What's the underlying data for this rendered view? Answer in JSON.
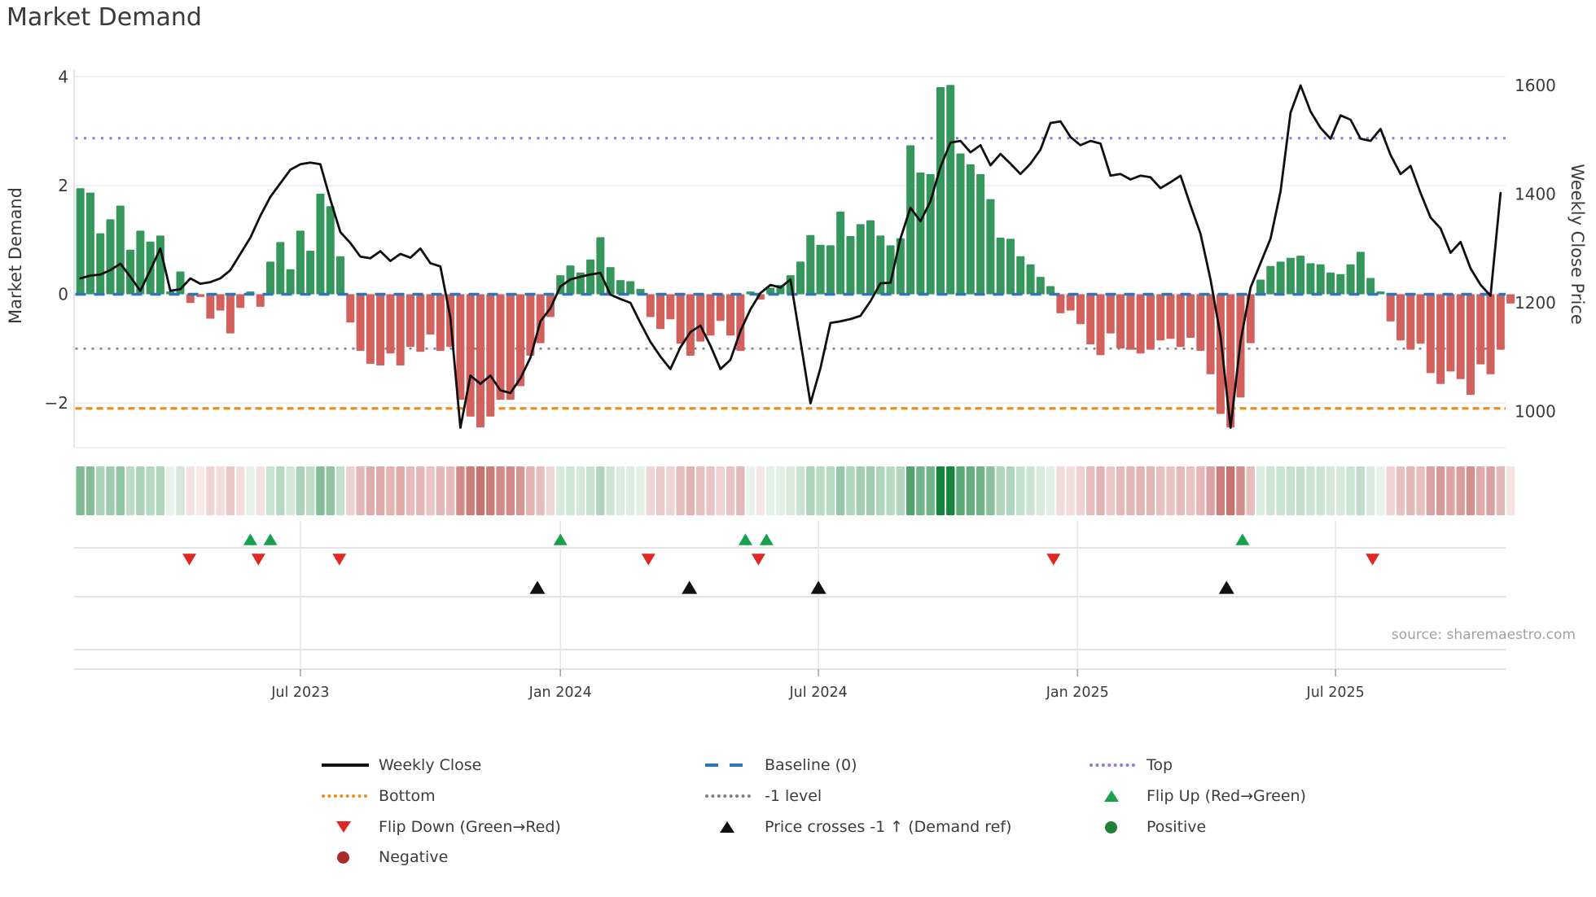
{
  "page": {
    "title": "Market Demand",
    "source": "source: sharemaestro.com"
  },
  "axes": {
    "left": {
      "title": "Market Demand",
      "ticks": [
        {
          "v": 4,
          "label": "4"
        },
        {
          "v": 2,
          "label": "2"
        },
        {
          "v": 0,
          "label": "0"
        },
        {
          "v": -2,
          "label": "−2"
        }
      ]
    },
    "right": {
      "title": "Weekly Close Price",
      "ticks": [
        {
          "p": 1600,
          "label": "1600"
        },
        {
          "p": 1400,
          "label": "1400"
        },
        {
          "p": 1200,
          "label": "1200"
        },
        {
          "p": 1000,
          "label": "1000"
        }
      ]
    },
    "x": {
      "ticks": [
        {
          "week": 22.0,
          "label": "Jul 2023"
        },
        {
          "week": 48.0,
          "label": "Jan 2024"
        },
        {
          "week": 73.8,
          "label": "Jul 2024"
        },
        {
          "week": 99.7,
          "label": "Jan 2025"
        },
        {
          "week": 125.5,
          "label": "Jul 2025"
        }
      ]
    }
  },
  "chart_data": {
    "type": "bar+line",
    "title": "Market Demand",
    "x_unit": "weeks (Feb 2023 - Oct 2025)",
    "ylim_left": [
      -2.8,
      4.1
    ],
    "ylim_right": [
      960,
      1630
    ],
    "grid": "horizontal",
    "series": [
      {
        "name": "Market Demand",
        "type": "bar",
        "axis": "left",
        "values": [
          1.95,
          1.87,
          1.12,
          1.38,
          1.63,
          0.82,
          1.17,
          0.97,
          1.08,
          0.05,
          0.42,
          -0.16,
          -0.05,
          -0.45,
          -0.3,
          -0.72,
          -0.25,
          0.05,
          -0.23,
          0.6,
          0.96,
          0.46,
          1.17,
          0.8,
          1.85,
          1.62,
          0.7,
          -0.52,
          -1.04,
          -1.28,
          -1.31,
          -1.09,
          -1.31,
          -0.97,
          -1.06,
          -0.74,
          -1.04,
          -0.97,
          -1.94,
          -2.25,
          -2.45,
          -2.25,
          -1.94,
          -1.94,
          -1.69,
          -1.13,
          -0.9,
          -0.42,
          0.35,
          0.53,
          0.4,
          0.64,
          1.05,
          0.5,
          0.26,
          0.24,
          0.1,
          -0.42,
          -0.64,
          -0.46,
          -0.91,
          -1.13,
          -0.87,
          -0.76,
          -0.49,
          -0.76,
          -1.04,
          0.05,
          -0.1,
          0.12,
          0.17,
          0.35,
          0.6,
          1.09,
          0.91,
          0.9,
          1.52,
          1.07,
          1.29,
          1.36,
          1.08,
          0.9,
          1.03,
          2.74,
          2.24,
          2.21,
          3.81,
          3.85,
          2.59,
          2.39,
          2.21,
          1.75,
          1.04,
          1.02,
          0.7,
          0.55,
          0.32,
          0.15,
          -0.35,
          -0.3,
          -0.55,
          -0.92,
          -1.12,
          -0.72,
          -1.0,
          -1.02,
          -1.09,
          -1.02,
          -0.85,
          -0.82,
          -0.97,
          -0.8,
          -1.04,
          -1.47,
          -2.2,
          -2.45,
          -1.9,
          -0.9,
          0.27,
          0.52,
          0.6,
          0.67,
          0.71,
          0.57,
          0.55,
          0.4,
          0.37,
          0.55,
          0.78,
          0.3,
          0.05,
          -0.5,
          -0.85,
          -1.02,
          -0.91,
          -1.45,
          -1.65,
          -1.42,
          -1.56,
          -1.85,
          -1.29,
          -1.47,
          -1.02,
          -0.17
        ]
      },
      {
        "name": "Weekly Close",
        "type": "line",
        "axis": "right",
        "values": [
          1245,
          1250,
          1252,
          1260,
          1272,
          1248,
          1222,
          1260,
          1300,
          1222,
          1225,
          1245,
          1235,
          1238,
          1245,
          1260,
          1290,
          1320,
          1360,
          1395,
          1420,
          1445,
          1455,
          1458,
          1455,
          1390,
          1330,
          1310,
          1285,
          1282,
          1295,
          1277,
          1290,
          1283,
          1300,
          1273,
          1267,
          1173,
          970,
          1066,
          1051,
          1066,
          1039,
          1034,
          1061,
          1099,
          1166,
          1190,
          1230,
          1243,
          1248,
          1252,
          1255,
          1215,
          1207,
          1200,
          1163,
          1128,
          1101,
          1078,
          1118,
          1146,
          1158,
          1121,
          1078,
          1095,
          1148,
          1188,
          1218,
          1233,
          1228,
          1243,
          1130,
          1015,
          1080,
          1163,
          1166,
          1170,
          1176,
          1203,
          1236,
          1237,
          1318,
          1375,
          1350,
          1387,
          1450,
          1495,
          1498,
          1477,
          1490,
          1453,
          1474,
          1456,
          1437,
          1456,
          1482,
          1531,
          1534,
          1505,
          1490,
          1498,
          1493,
          1434,
          1437,
          1427,
          1434,
          1431,
          1411,
          1422,
          1434,
          1379,
          1327,
          1243,
          1139,
          970,
          1129,
          1228,
          1273,
          1318,
          1405,
          1550,
          1600,
          1552,
          1522,
          1502,
          1545,
          1537,
          1502,
          1498,
          1520,
          1472,
          1437,
          1452,
          1402,
          1357,
          1337,
          1292,
          1312,
          1263,
          1233,
          1213,
          1402
        ]
      }
    ],
    "ref_lines": [
      {
        "name": "top",
        "label": "Top",
        "axis": "left",
        "value": 2.87,
        "color": "#8b7edd",
        "style": "dotted"
      },
      {
        "name": "baseline",
        "label": "Baseline (0)",
        "axis": "left",
        "value": 0,
        "color": "#2e76b5",
        "style": "dashed"
      },
      {
        "name": "minus_one",
        "label": "-1 level",
        "axis": "left",
        "value": -1,
        "color": "#83838a",
        "style": "dotted"
      },
      {
        "name": "bottom",
        "label": "Bottom",
        "axis": "left",
        "value": -2.1,
        "color": "#ee8e1f",
        "style": "dotted"
      }
    ],
    "markers": {
      "flip_up": {
        "label": "Flip Up (Red→Green)",
        "color": "#18a14a",
        "weeks": [
          17.0,
          19.0,
          48.0,
          66.5,
          68.6,
          116.2
        ]
      },
      "flip_down": {
        "label": "Flip Down (Green→Red)",
        "color": "#e02724",
        "weeks": [
          10.9,
          17.8,
          25.9,
          56.8,
          67.8,
          97.3,
          129.2
        ]
      },
      "price_cross": {
        "label": "Price crosses -1 ↑ (Demand ref)",
        "color": "#111111",
        "weeks": [
          45.7,
          60.9,
          73.8,
          114.6
        ]
      }
    },
    "colors": {
      "bar_positive": "#35975c",
      "bar_negative": "#d2615e",
      "price_line": "#101010",
      "heat_pos_low": "#eaf4ec",
      "heat_pos_high": "#168442",
      "heat_neg_low": "#f8ebeb",
      "heat_neg_high": "#c6726e"
    },
    "heatmap": {
      "description": "weekly demand strip, green positive / red negative, intensity by magnitude"
    }
  },
  "legend": {
    "columns": [
      {
        "items": [
          {
            "swatch": "line-black",
            "label": "Weekly Close"
          },
          {
            "swatch": "dotted-orange",
            "label": "Bottom"
          },
          {
            "swatch": "tri-down-red",
            "label": "Flip Down (Green→Red)"
          },
          {
            "swatch": "circle-darkred",
            "label": "Negative"
          }
        ]
      },
      {
        "items": [
          {
            "swatch": "dash-blue",
            "label": "Baseline (0)"
          },
          {
            "swatch": "dotted-gray",
            "label": "-1 level"
          },
          {
            "swatch": "tri-up-black",
            "label": "Price crosses -1 ↑ (Demand ref)"
          }
        ]
      },
      {
        "items": [
          {
            "swatch": "dotted-purple",
            "label": "Top"
          },
          {
            "swatch": "tri-up-green",
            "label": "Flip Up (Red→Green)"
          },
          {
            "swatch": "circle-green",
            "label": "Positive"
          }
        ]
      }
    ],
    "swatch_colors": {
      "line-black": "#111111",
      "dotted-orange": "#ee8e1f",
      "tri-down-red": "#e02724",
      "circle-darkred": "#a92a2a",
      "dash-blue": "#2e76b5",
      "dotted-gray": "#7f7f86",
      "tri-up-black": "#111111",
      "dotted-purple": "#8b7edd",
      "tri-up-green": "#18a14a",
      "circle-green": "#1e8034"
    }
  }
}
